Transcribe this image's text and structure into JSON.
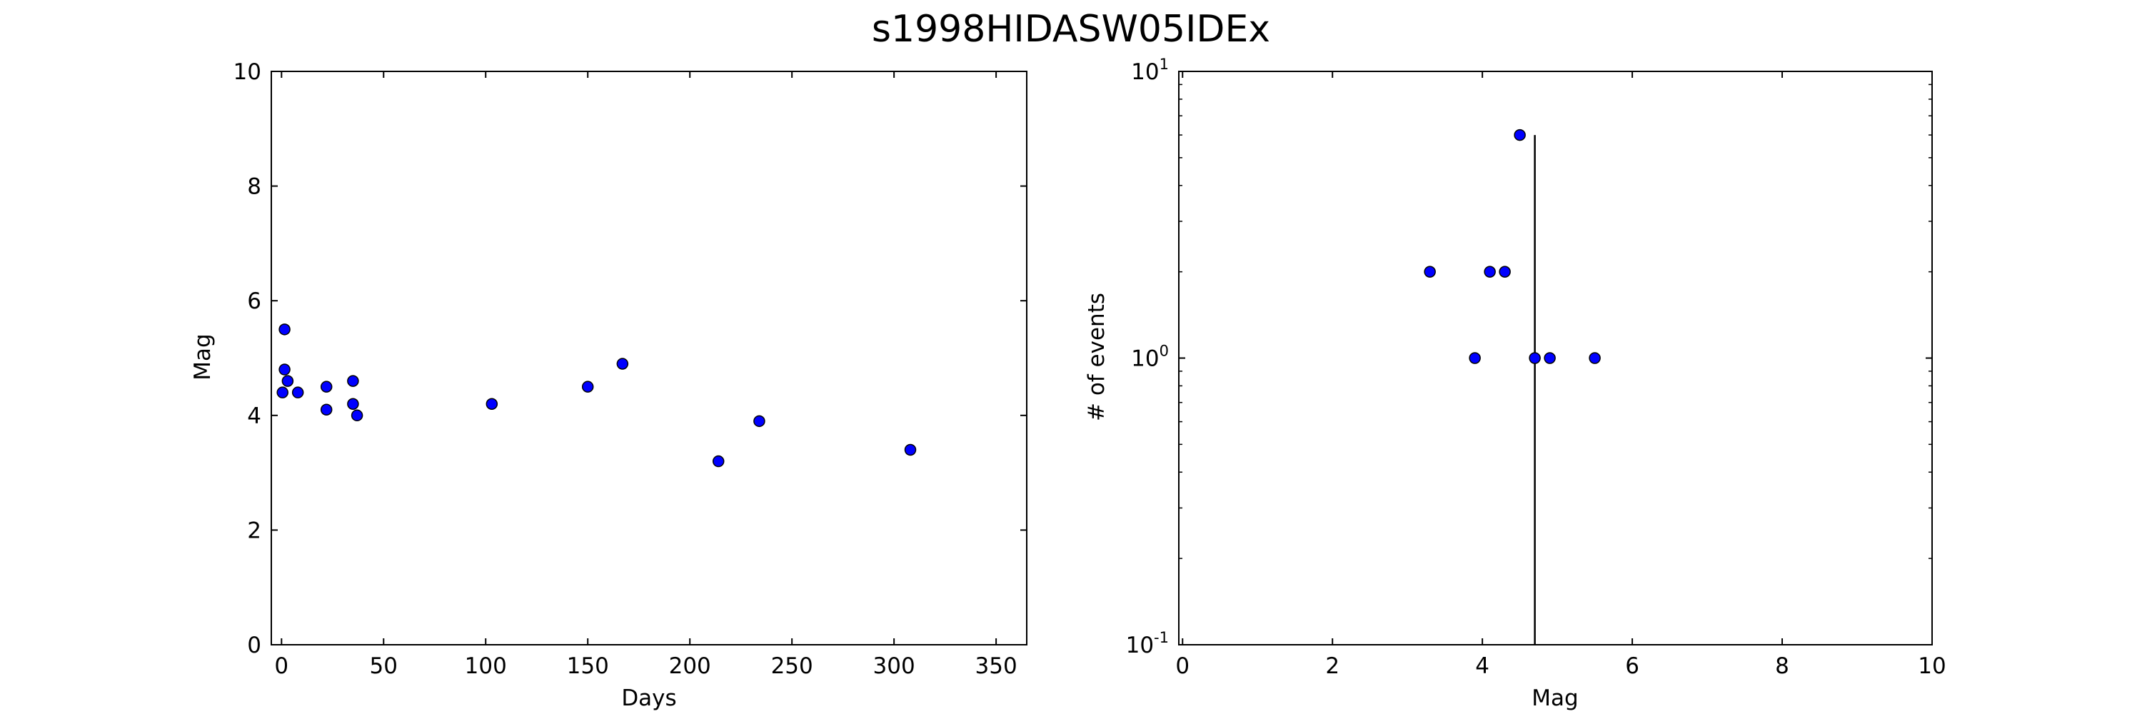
{
  "title": "s1998HIDASW05IDEx",
  "chart_data": [
    {
      "type": "scatter",
      "xlabel": "Days",
      "ylabel": "Mag",
      "xlim": [
        -5,
        365
      ],
      "ylim": [
        0,
        10
      ],
      "x_ticks": [
        {
          "value": 0,
          "label": "0"
        },
        {
          "value": 50,
          "label": "50"
        },
        {
          "value": 100,
          "label": "100"
        },
        {
          "value": 150,
          "label": "150"
        },
        {
          "value": 200,
          "label": "200"
        },
        {
          "value": 250,
          "label": "250"
        },
        {
          "value": 300,
          "label": "300"
        },
        {
          "value": 350,
          "label": "350"
        }
      ],
      "y_ticks": [
        {
          "value": 0,
          "label": "0"
        },
        {
          "value": 2,
          "label": "2"
        },
        {
          "value": 4,
          "label": "4"
        },
        {
          "value": 6,
          "label": "6"
        },
        {
          "value": 8,
          "label": "8"
        },
        {
          "value": 10,
          "label": "10"
        }
      ],
      "marker_color": "#0000ff",
      "points": [
        {
          "x": 0.5,
          "y": 4.4
        },
        {
          "x": 1.5,
          "y": 5.5
        },
        {
          "x": 1.5,
          "y": 4.8
        },
        {
          "x": 3,
          "y": 4.6
        },
        {
          "x": 8,
          "y": 4.4
        },
        {
          "x": 22,
          "y": 4.5
        },
        {
          "x": 22,
          "y": 4.1
        },
        {
          "x": 35,
          "y": 4.6
        },
        {
          "x": 35,
          "y": 4.2
        },
        {
          "x": 37,
          "y": 4.0
        },
        {
          "x": 103,
          "y": 4.2
        },
        {
          "x": 150,
          "y": 4.5
        },
        {
          "x": 167,
          "y": 4.9
        },
        {
          "x": 214,
          "y": 3.2
        },
        {
          "x": 234,
          "y": 3.9
        },
        {
          "x": 308,
          "y": 3.4
        }
      ]
    },
    {
      "type": "scatter",
      "xlabel": "Mag",
      "ylabel": "# of events",
      "xlim": [
        -0.05,
        10
      ],
      "ylim": [
        0.1,
        10
      ],
      "yscale": "log",
      "x_ticks": [
        {
          "value": 0,
          "label": "0"
        },
        {
          "value": 2,
          "label": "2"
        },
        {
          "value": 4,
          "label": "4"
        },
        {
          "value": 6,
          "label": "6"
        },
        {
          "value": 8,
          "label": "8"
        },
        {
          "value": 10,
          "label": "10"
        }
      ],
      "y_ticks": [
        {
          "value": 0.1,
          "base": "10",
          "exponent": "-1"
        },
        {
          "value": 1,
          "base": "10",
          "exponent": "0"
        },
        {
          "value": 10,
          "base": "10",
          "exponent": "1"
        }
      ],
      "marker_color": "#0000ff",
      "points": [
        {
          "x": 3.3,
          "y": 2
        },
        {
          "x": 3.9,
          "y": 1
        },
        {
          "x": 4.1,
          "y": 2
        },
        {
          "x": 4.3,
          "y": 2
        },
        {
          "x": 4.5,
          "y": 6
        },
        {
          "x": 4.7,
          "y": 1
        },
        {
          "x": 4.9,
          "y": 1
        },
        {
          "x": 5.5,
          "y": 1
        }
      ],
      "vertical_line": {
        "x": 4.7,
        "y_top": 6
      }
    }
  ]
}
